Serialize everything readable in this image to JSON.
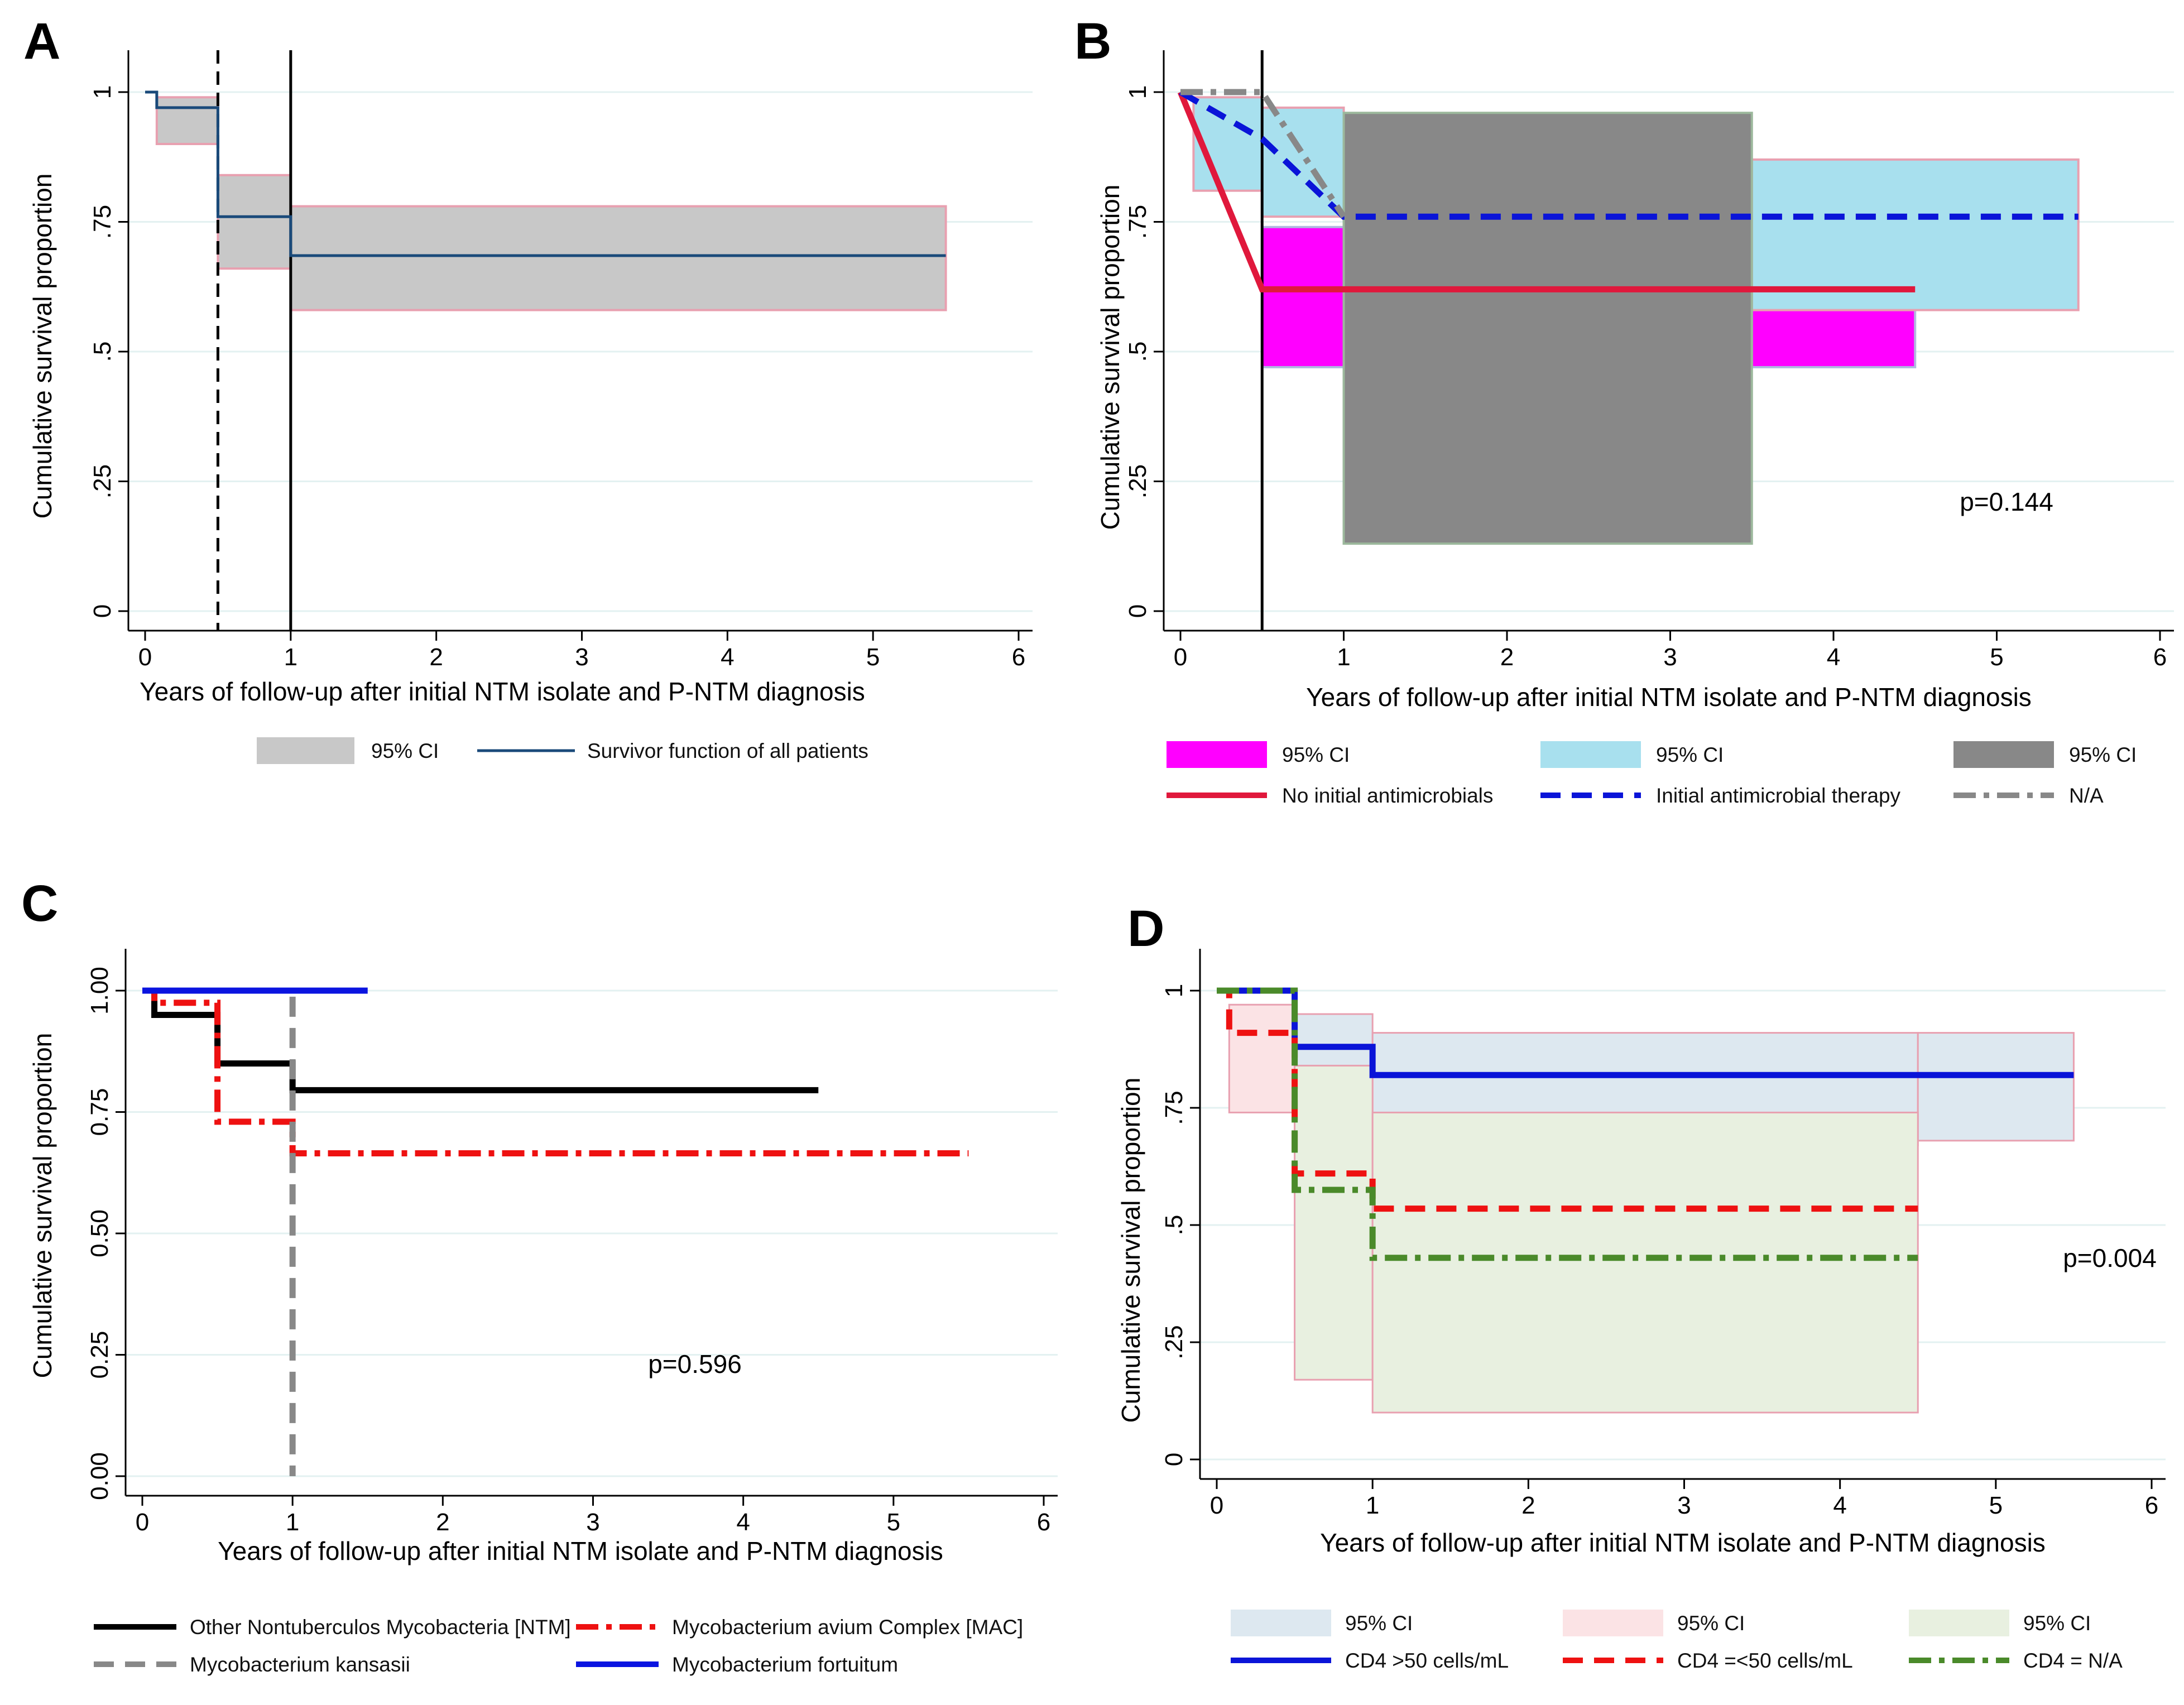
{
  "chart_data": [
    {
      "panel": "A",
      "type": "line",
      "subtype": "kaplan-meier",
      "xlabel": "Years of follow-up after initial NTM isolate and P-NTM diagnosis",
      "ylabel": "Cumulative survival proportion",
      "xlim": [
        0,
        6
      ],
      "ylim": [
        0,
        1
      ],
      "x_ticks": [
        "0",
        "1",
        "2",
        "3",
        "4",
        "5",
        "6"
      ],
      "y_ticks": [
        "0",
        ".25",
        ".5",
        ".75",
        "1"
      ],
      "vlines": [
        {
          "x": 0.5,
          "style": "dashed"
        },
        {
          "x": 1.0,
          "style": "solid"
        }
      ],
      "series": [
        {
          "name": "Survivor function of all patients",
          "color": "#1a4a7a",
          "style": "solid",
          "steps": [
            [
              0,
              1.0
            ],
            [
              0.08,
              0.97
            ],
            [
              0.5,
              0.76
            ],
            [
              1.0,
              0.685
            ],
            [
              5.5,
              0.685
            ]
          ],
          "ci": [
            [
              0.08,
              0.5,
              0.9,
              0.99
            ],
            [
              0.5,
              1.0,
              0.66,
              0.84
            ],
            [
              1.0,
              5.5,
              0.58,
              0.78
            ]
          ],
          "ci_color": "#c8c8c8"
        }
      ],
      "legend": [
        {
          "label": "95% CI",
          "swatch": "fill",
          "color": "#c8c8c8"
        },
        {
          "label": "Survivor function of all patients",
          "swatch": "line",
          "color": "#1a4a7a",
          "style": "solid"
        }
      ]
    },
    {
      "panel": "B",
      "type": "line",
      "subtype": "kaplan-meier",
      "xlabel": "Years of follow-up after initial NTM isolate and P-NTM diagnosis",
      "ylabel": "Cumulative survival proportion",
      "xlim": [
        0,
        6
      ],
      "ylim": [
        0,
        1
      ],
      "x_ticks": [
        "0",
        "1",
        "2",
        "3",
        "4",
        "5",
        "6"
      ],
      "y_ticks": [
        "0",
        ".25",
        ".5",
        ".75",
        "1"
      ],
      "annotation": "p=0.144",
      "vlines": [
        {
          "x": 0.5,
          "style": "solid"
        }
      ],
      "series": [
        {
          "name": "No initial antimicrobials",
          "color": "#e0183c",
          "style": "solid",
          "points": [
            [
              0,
              1.0
            ],
            [
              0.5,
              0.62
            ],
            [
              4.5,
              0.62
            ]
          ],
          "ci": [
            [
              0.5,
              1.0,
              0.47,
              0.74
            ],
            [
              3.5,
              4.5,
              0.47,
              0.58
            ]
          ],
          "ci_color": "#ff00ff"
        },
        {
          "name": "Initial antimicrobial therapy",
          "color": "#0a14d8",
          "style": "dashed",
          "points": [
            [
              0,
              1.0
            ],
            [
              0.5,
              0.91
            ],
            [
              1.0,
              0.76
            ],
            [
              5.5,
              0.76
            ]
          ],
          "ci": [
            [
              0.08,
              0.5,
              0.81,
              0.99
            ],
            [
              0.5,
              1.0,
              0.76,
              0.97
            ],
            [
              3.5,
              5.5,
              0.58,
              0.87
            ]
          ],
          "ci_color": "#a8e0ee"
        },
        {
          "name": "N/A",
          "color": "#888888",
          "style": "dashdot",
          "points": [
            [
              0,
              1.0
            ],
            [
              0.5,
              1.0
            ],
            [
              1.0,
              0.76
            ]
          ],
          "ci": [
            [
              1.0,
              3.5,
              0.13,
              0.96
            ]
          ],
          "ci_color": "#888888"
        }
      ],
      "legend": [
        {
          "label": "95% CI",
          "swatch": "fill",
          "color": "#ff00ff"
        },
        {
          "label": "95% CI",
          "swatch": "fill",
          "color": "#a8e0ee"
        },
        {
          "label": "95% CI",
          "swatch": "fill",
          "color": "#888888"
        },
        {
          "label": "No initial antimicrobials",
          "swatch": "line",
          "color": "#e0183c",
          "style": "solid"
        },
        {
          "label": "Initial antimicrobial therapy",
          "swatch": "line",
          "color": "#0a14d8",
          "style": "dashed"
        },
        {
          "label": "N/A",
          "swatch": "line",
          "color": "#888888",
          "style": "dashdot"
        }
      ]
    },
    {
      "panel": "C",
      "type": "line",
      "subtype": "kaplan-meier",
      "xlabel": "Years of follow-up after initial NTM isolate and P-NTM diagnosis",
      "ylabel": "Cumulative survival proportion",
      "xlim": [
        0,
        6
      ],
      "ylim": [
        0,
        1
      ],
      "x_ticks": [
        "0",
        "1",
        "2",
        "3",
        "4",
        "5",
        "6"
      ],
      "y_ticks": [
        "0.00",
        "0.25",
        "0.50",
        "0.75",
        "1.00"
      ],
      "annotation": "p=0.596",
      "series": [
        {
          "name": "Other Nontuberculos Mycobacteria [NTM]",
          "color": "#000000",
          "style": "solid",
          "steps": [
            [
              0,
              1.0
            ],
            [
              0.08,
              0.95
            ],
            [
              0.5,
              0.85
            ],
            [
              1.0,
              0.795
            ],
            [
              4.5,
              0.795
            ]
          ]
        },
        {
          "name": "Mycobacterium avium Complex [MAC]",
          "color": "#ee1111",
          "style": "dashdot",
          "steps": [
            [
              0,
              1.0
            ],
            [
              0.08,
              0.975
            ],
            [
              0.5,
              0.73
            ],
            [
              1.0,
              0.665
            ],
            [
              5.5,
              0.665
            ]
          ]
        },
        {
          "name": "Mycobacterium kansasii",
          "color": "#888888",
          "style": "dashed",
          "steps": [
            [
              0,
              1.0
            ],
            [
              1.0,
              0.0
            ]
          ]
        },
        {
          "name": "Mycobacterium fortuitum",
          "color": "#0a14e0",
          "style": "solid",
          "steps": [
            [
              0,
              1.0
            ],
            [
              1.5,
              1.0
            ]
          ]
        }
      ],
      "legend": [
        {
          "label": "Other Nontuberculos Mycobacteria [NTM]",
          "swatch": "line",
          "color": "#000000",
          "style": "solid"
        },
        {
          "label": "Mycobacterium avium Complex [MAC]",
          "swatch": "line",
          "color": "#ee1111",
          "style": "dashdot"
        },
        {
          "label": "Mycobacterium kansasii",
          "swatch": "line",
          "color": "#888888",
          "style": "dashed"
        },
        {
          "label": "Mycobacterium fortuitum",
          "swatch": "line",
          "color": "#0a14e0",
          "style": "solid"
        }
      ]
    },
    {
      "panel": "D",
      "type": "line",
      "subtype": "kaplan-meier",
      "xlabel": "Years of follow-up after initial NTM isolate and P-NTM diagnosis",
      "ylabel": "Cumulative survival proportion",
      "xlim": [
        0,
        6
      ],
      "ylim": [
        0,
        1
      ],
      "x_ticks": [
        "0",
        "1",
        "2",
        "3",
        "4",
        "5",
        "6"
      ],
      "y_ticks": [
        "0",
        ".25",
        ".5",
        ".75",
        "1"
      ],
      "annotation": "p=0.004",
      "series": [
        {
          "name": "CD4 >50 cells/mL",
          "color": "#0a14d8",
          "style": "solid",
          "steps": [
            [
              0,
              1.0
            ],
            [
              0.5,
              0.88
            ],
            [
              1.0,
              0.82
            ],
            [
              5.5,
              0.82
            ]
          ],
          "ci": [
            [
              0.5,
              1.0,
              0.67,
              0.95
            ],
            [
              1.0,
              4.5,
              0.67,
              0.91
            ],
            [
              4.5,
              5.5,
              0.68,
              0.91
            ]
          ],
          "ci_color": "#dde8f0"
        },
        {
          "name": "CD4 =<50 cells/mL",
          "color": "#ee1111",
          "style": "dashed",
          "steps": [
            [
              0,
              1.0
            ],
            [
              0.08,
              0.91
            ],
            [
              0.5,
              0.61
            ],
            [
              1.0,
              0.535
            ],
            [
              4.5,
              0.535
            ]
          ],
          "ci": [
            [
              0.08,
              0.5,
              0.74,
              0.97
            ]
          ],
          "ci_color": "#fbe3e5"
        },
        {
          "name": "CD4 = N/A",
          "color": "#4a8a2a",
          "style": "dashdot",
          "steps": [
            [
              0,
              1.0
            ],
            [
              0.5,
              0.575
            ],
            [
              1.0,
              0.43
            ],
            [
              4.5,
              0.43
            ]
          ],
          "ci": [
            [
              0.5,
              1.0,
              0.17,
              0.84
            ],
            [
              1.0,
              4.5,
              0.1,
              0.74
            ]
          ],
          "ci_color": "#e8f0e0"
        }
      ],
      "legend": [
        {
          "label": "95% CI",
          "swatch": "fill",
          "color": "#dde8f0"
        },
        {
          "label": "95% CI",
          "swatch": "fill",
          "color": "#fbe3e5"
        },
        {
          "label": "95% CI",
          "swatch": "fill",
          "color": "#e8f0e0"
        },
        {
          "label": "CD4 >50 cells/mL",
          "swatch": "line",
          "color": "#0a14d8",
          "style": "solid"
        },
        {
          "label": "CD4 =<50 cells/mL",
          "swatch": "line",
          "color": "#ee1111",
          "style": "dashed"
        },
        {
          "label": "CD4 = N/A",
          "swatch": "line",
          "color": "#4a8a2a",
          "style": "dashdot"
        }
      ]
    }
  ]
}
